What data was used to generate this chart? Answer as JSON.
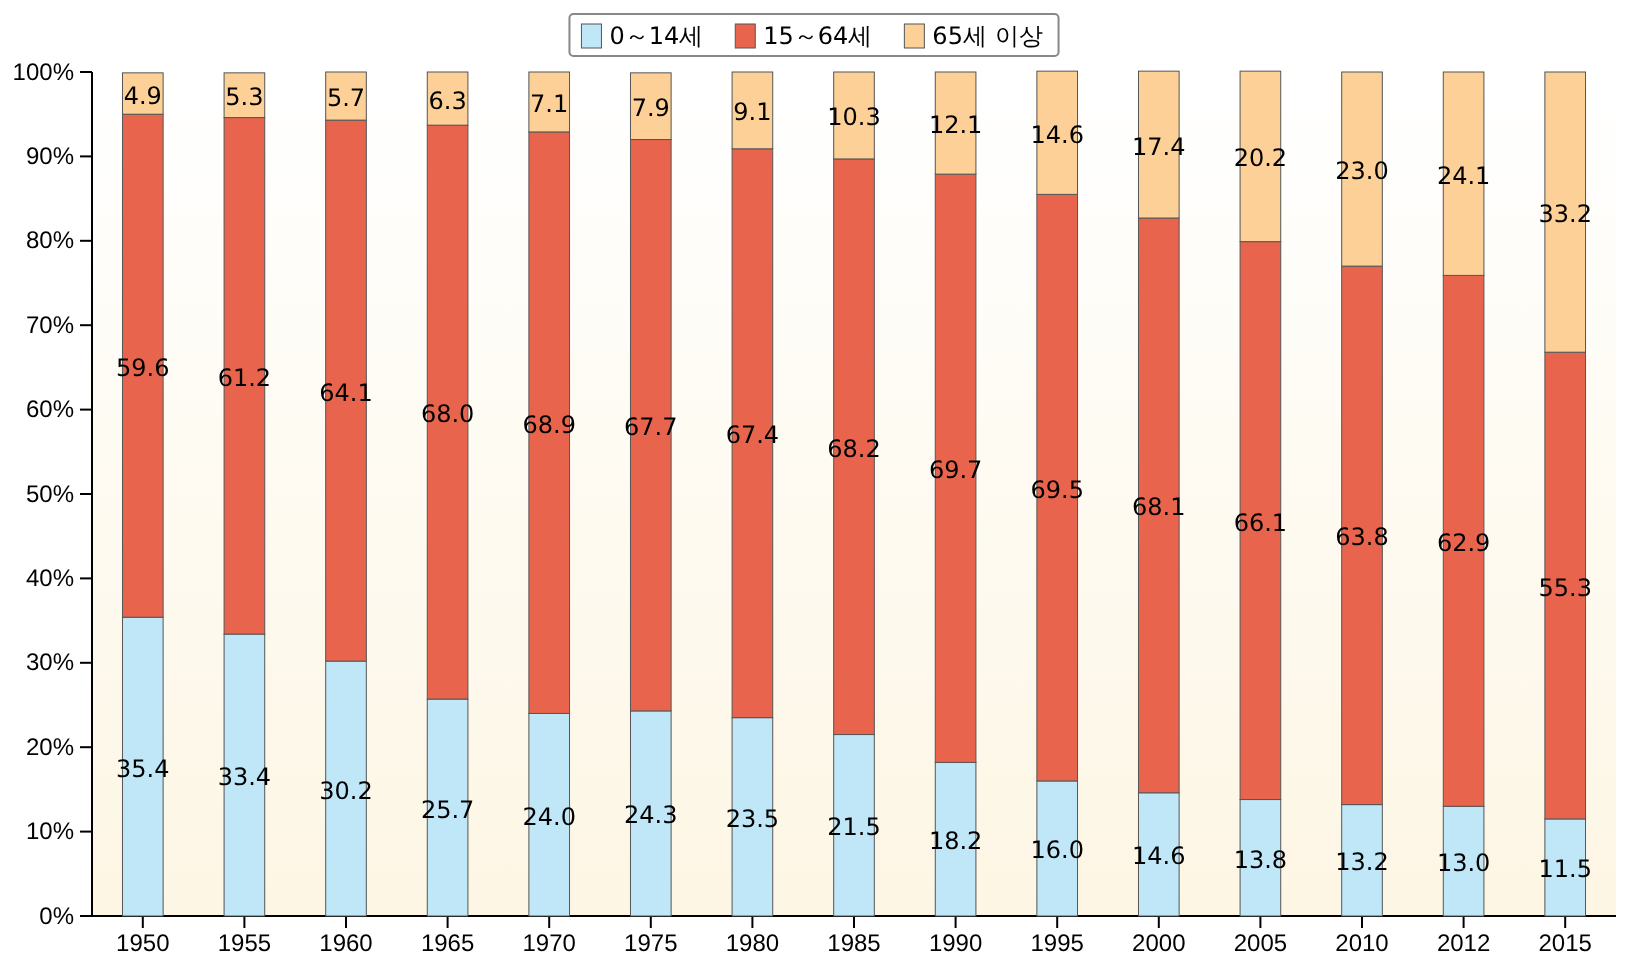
{
  "chart_data": {
    "type": "bar",
    "stacked": true,
    "categories": [
      "1950",
      "1955",
      "1960",
      "1965",
      "1970",
      "1975",
      "1980",
      "1985",
      "1990",
      "1995",
      "2000",
      "2005",
      "2010",
      "2012",
      "2015"
    ],
    "series": [
      {
        "name": "0～14세",
        "color": "#bfe7f8",
        "values": [
          35.4,
          33.4,
          30.2,
          25.7,
          24.0,
          24.3,
          23.5,
          21.5,
          18.2,
          16.0,
          14.6,
          13.8,
          13.2,
          13.0,
          11.5
        ],
        "value_labels": [
          "35.4",
          "33.4",
          "30.2",
          "25.7",
          "24.0",
          "24.3",
          "23.5",
          "21.5",
          "18.2",
          "16.0",
          "14.6",
          "13.8",
          "13.2",
          "13.0",
          "11.5"
        ]
      },
      {
        "name": "15～64세",
        "color": "#e9644c",
        "values": [
          59.6,
          61.2,
          64.1,
          68.0,
          68.9,
          67.7,
          67.4,
          68.2,
          69.7,
          69.5,
          68.1,
          66.1,
          63.8,
          62.9,
          55.3
        ],
        "value_labels": [
          "59.6",
          "61.2",
          "64.1",
          "68.0",
          "68.9",
          "67.7",
          "67.4",
          "68.2",
          "69.7",
          "69.5",
          "68.1",
          "66.1",
          "63.8",
          "62.9",
          "55.3"
        ]
      },
      {
        "name": "65세 이상",
        "color": "#fcd097",
        "values": [
          4.9,
          5.3,
          5.7,
          6.3,
          7.1,
          7.9,
          9.1,
          10.3,
          12.1,
          14.6,
          17.4,
          20.2,
          23.0,
          24.1,
          33.2
        ],
        "value_labels": [
          "4.9",
          "5.3",
          "5.7",
          "6.3",
          "7.1",
          "7.9",
          "9.1",
          "10.3",
          "12.1",
          "14.6",
          "17.4",
          "20.2",
          "23.0",
          "24.1",
          "33.2"
        ]
      }
    ],
    "ylim": [
      0,
      100
    ],
    "yticks": [
      {
        "value": 0,
        "label": "0%"
      },
      {
        "value": 10,
        "label": "10%"
      },
      {
        "value": 20,
        "label": "20%"
      },
      {
        "value": 30,
        "label": "30%"
      },
      {
        "value": 40,
        "label": "40%"
      },
      {
        "value": 50,
        "label": "50%"
      },
      {
        "value": 60,
        "label": "60%"
      },
      {
        "value": 70,
        "label": "70%"
      },
      {
        "value": 80,
        "label": "80%"
      },
      {
        "value": 90,
        "label": "90%"
      },
      {
        "value": 100,
        "label": "100%"
      }
    ],
    "grid": false,
    "legend": "top"
  }
}
